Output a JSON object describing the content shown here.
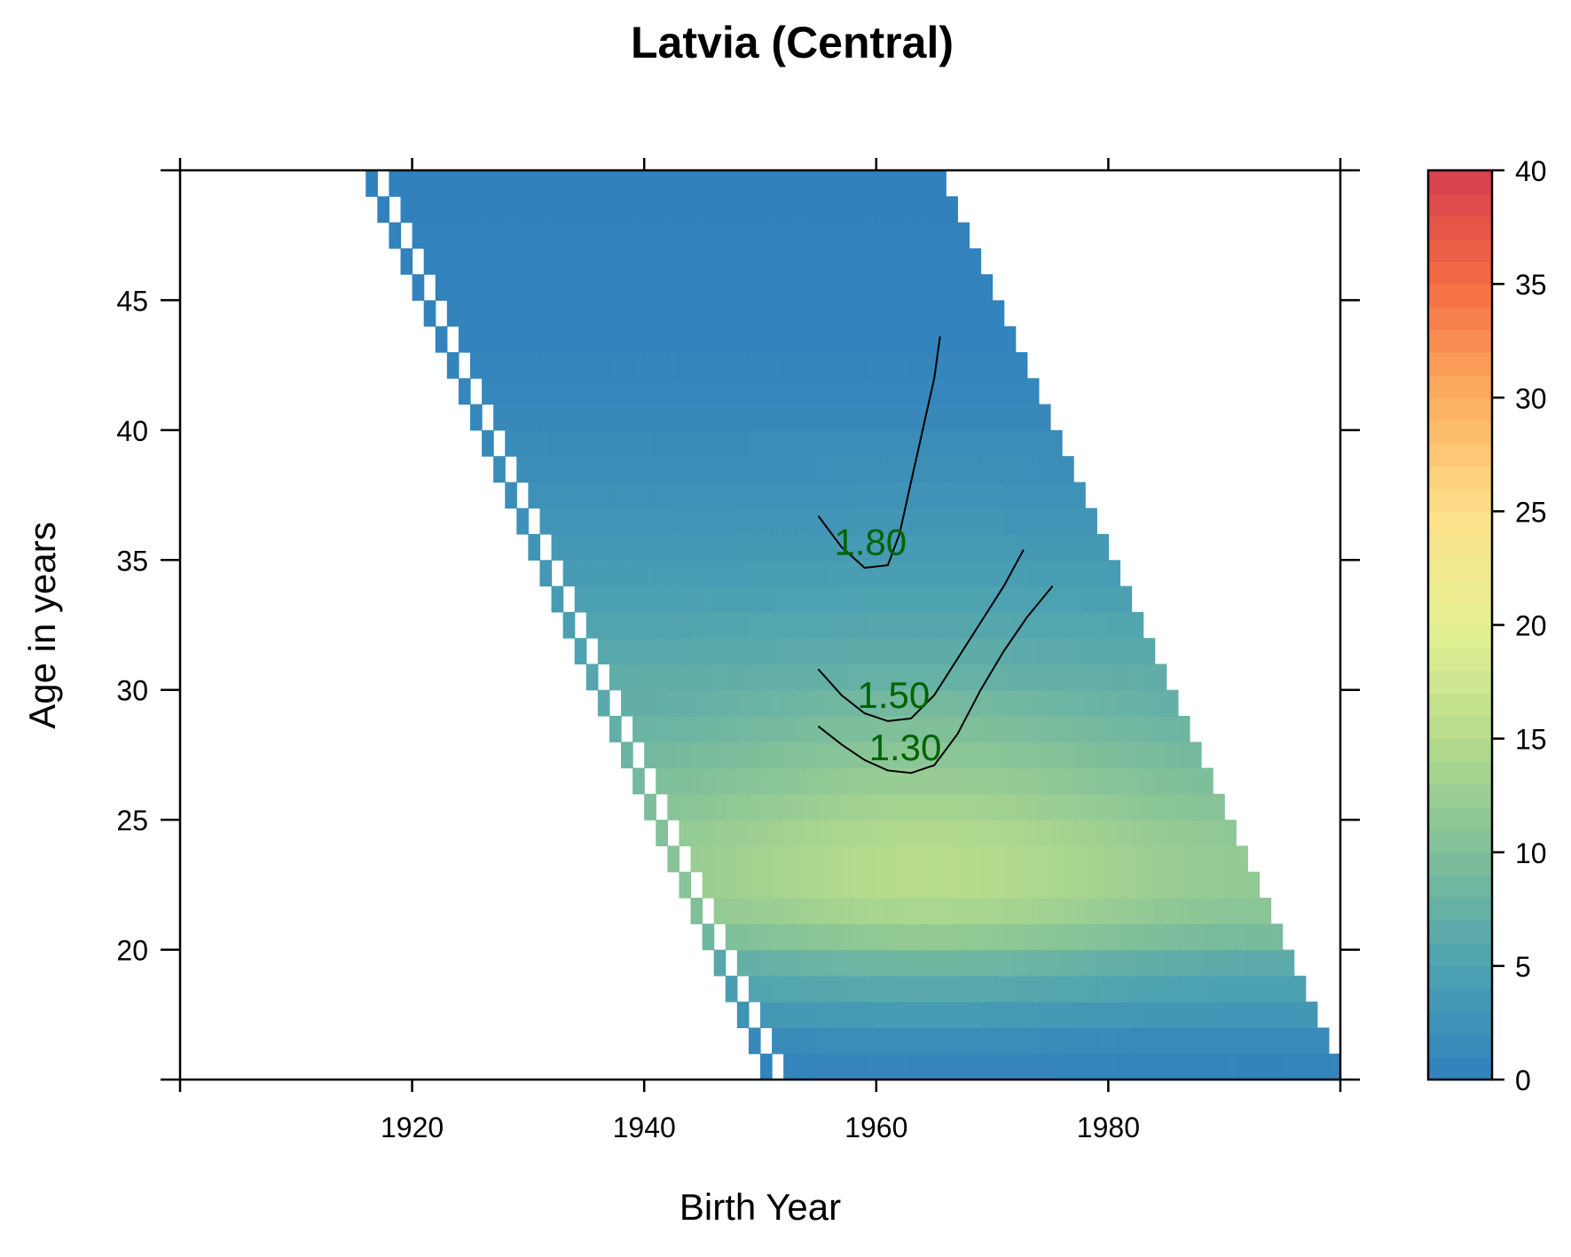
{
  "chart_data": {
    "type": "heatmap",
    "title": "Latvia (Central)",
    "xlabel": "Birth Year",
    "ylabel": "Age in years",
    "xlim": [
      1900,
      2000
    ],
    "ylim": [
      15,
      50
    ],
    "x_ticks": [
      1920,
      1940,
      1960,
      1980
    ],
    "x_tick_labels": [
      "1920",
      "1940",
      "1960",
      "1980"
    ],
    "y_ticks": [
      20,
      25,
      30,
      35,
      40,
      45
    ],
    "y_tick_labels": [
      "20",
      "25",
      "30",
      "35",
      "40",
      "45"
    ],
    "colorbar": {
      "min": 0,
      "max": 40,
      "ticks": [
        0,
        5,
        10,
        15,
        20,
        25,
        30,
        35,
        40
      ],
      "tick_labels": [
        "0",
        "5",
        "10",
        "15",
        "20",
        "25",
        "30",
        "35",
        "40"
      ],
      "colors": [
        "#3181bd",
        "#4da2b1",
        "#7fbf9a",
        "#b5dc8c",
        "#e6f194",
        "#fde08a",
        "#fdae61",
        "#f46d43",
        "#d53e4f"
      ]
    },
    "observation_years": [
      1965,
      2015
    ],
    "isolated_diagonal_year": 1965,
    "grid": false,
    "fertility_by_age": [
      {
        "age": 15,
        "value": 0.6
      },
      {
        "age": 16,
        "value": 1.5
      },
      {
        "age": 17,
        "value": 3.5
      },
      {
        "age": 18,
        "value": 5.5
      },
      {
        "age": 19,
        "value": 7.5
      },
      {
        "age": 20,
        "value": 10.5
      },
      {
        "age": 21,
        "value": 12.5
      },
      {
        "age": 22,
        "value": 13.5
      },
      {
        "age": 23,
        "value": 13.5
      },
      {
        "age": 24,
        "value": 13.0
      },
      {
        "age": 25,
        "value": 12.0
      },
      {
        "age": 26,
        "value": 11.0
      },
      {
        "age": 27,
        "value": 10.0
      },
      {
        "age": 28,
        "value": 9.0
      },
      {
        "age": 29,
        "value": 8.0
      },
      {
        "age": 30,
        "value": 7.2
      },
      {
        "age": 31,
        "value": 6.4
      },
      {
        "age": 32,
        "value": 5.6
      },
      {
        "age": 33,
        "value": 4.9
      },
      {
        "age": 34,
        "value": 4.2
      },
      {
        "age": 35,
        "value": 3.6
      },
      {
        "age": 36,
        "value": 3.0
      },
      {
        "age": 37,
        "value": 2.5
      },
      {
        "age": 38,
        "value": 2.0
      },
      {
        "age": 39,
        "value": 1.6
      },
      {
        "age": 40,
        "value": 1.2
      },
      {
        "age": 41,
        "value": 0.9
      },
      {
        "age": 42,
        "value": 0.6
      },
      {
        "age": 43,
        "value": 0.4
      },
      {
        "age": 44,
        "value": 0.3
      },
      {
        "age": 45,
        "value": 0.2
      },
      {
        "age": 46,
        "value": 0.1
      },
      {
        "age": 47,
        "value": 0.1
      },
      {
        "age": 48,
        "value": 0.0
      },
      {
        "age": 49,
        "value": 0.0
      }
    ],
    "contours": [
      {
        "label": "1.80",
        "label_pos": {
          "x": 1959.5,
          "y": 35.2
        },
        "points": [
          [
            1955,
            36.7
          ],
          [
            1957,
            35.5
          ],
          [
            1959,
            34.7
          ],
          [
            1961,
            34.8
          ],
          [
            1962,
            36
          ],
          [
            1963,
            38
          ],
          [
            1964,
            40
          ],
          [
            1965,
            42
          ],
          [
            1965.5,
            43.6
          ]
        ]
      },
      {
        "label": "1.50",
        "label_pos": {
          "x": 1961.5,
          "y": 29.3
        },
        "points": [
          [
            1955,
            30.8
          ],
          [
            1957,
            29.8
          ],
          [
            1959,
            29.1
          ],
          [
            1961,
            28.8
          ],
          [
            1963,
            28.9
          ],
          [
            1965,
            29.8
          ],
          [
            1967,
            31.2
          ],
          [
            1969,
            32.6
          ],
          [
            1971,
            34
          ],
          [
            1972.7,
            35.4
          ]
        ]
      },
      {
        "label": "1.30",
        "label_pos": {
          "x": 1962.5,
          "y": 27.3
        },
        "points": [
          [
            1955,
            28.6
          ],
          [
            1957,
            27.9
          ],
          [
            1959,
            27.3
          ],
          [
            1961,
            26.9
          ],
          [
            1963,
            26.8
          ],
          [
            1965,
            27.1
          ],
          [
            1967,
            28.3
          ],
          [
            1969,
            30
          ],
          [
            1971,
            31.5
          ],
          [
            1973,
            32.8
          ],
          [
            1975.2,
            34
          ]
        ]
      }
    ]
  }
}
